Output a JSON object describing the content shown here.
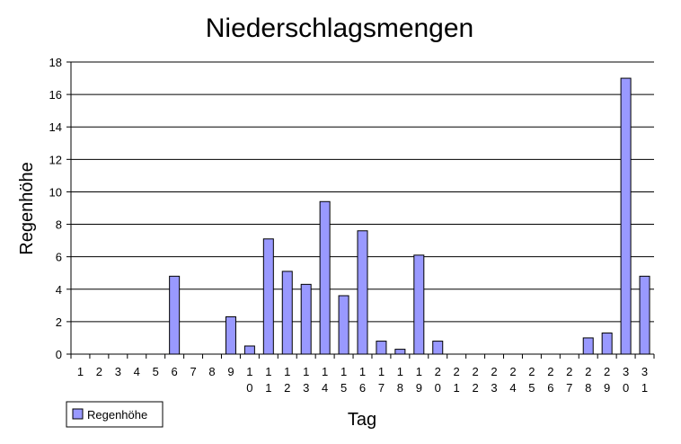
{
  "chart_data": {
    "type": "bar",
    "title": "Niederschlagsmengen",
    "x_label": "Tag",
    "y_label": "Regenhöhe",
    "categories": [
      "1",
      "2",
      "3",
      "4",
      "5",
      "6",
      "7",
      "8",
      "9",
      "10",
      "11",
      "12",
      "13",
      "14",
      "15",
      "16",
      "17",
      "18",
      "19",
      "20",
      "21",
      "22",
      "23",
      "24",
      "25",
      "26",
      "27",
      "28",
      "29",
      "30",
      "31"
    ],
    "series": [
      {
        "name": "Regenhöhe",
        "color": "#9999ff",
        "values": [
          0,
          0,
          0,
          0,
          0,
          4.8,
          0,
          0,
          2.3,
          0.5,
          7.1,
          5.1,
          4.3,
          9.4,
          3.6,
          7.6,
          0.8,
          0.3,
          6.1,
          0.8,
          0,
          0,
          0,
          0,
          0,
          0,
          0,
          1.0,
          1.3,
          17,
          4.8
        ]
      }
    ],
    "ylim": [
      0,
      18
    ],
    "yticks": [
      0,
      2,
      4,
      6,
      8,
      10,
      12,
      14,
      16,
      18
    ],
    "grid": true,
    "legend": "bottom-left"
  }
}
